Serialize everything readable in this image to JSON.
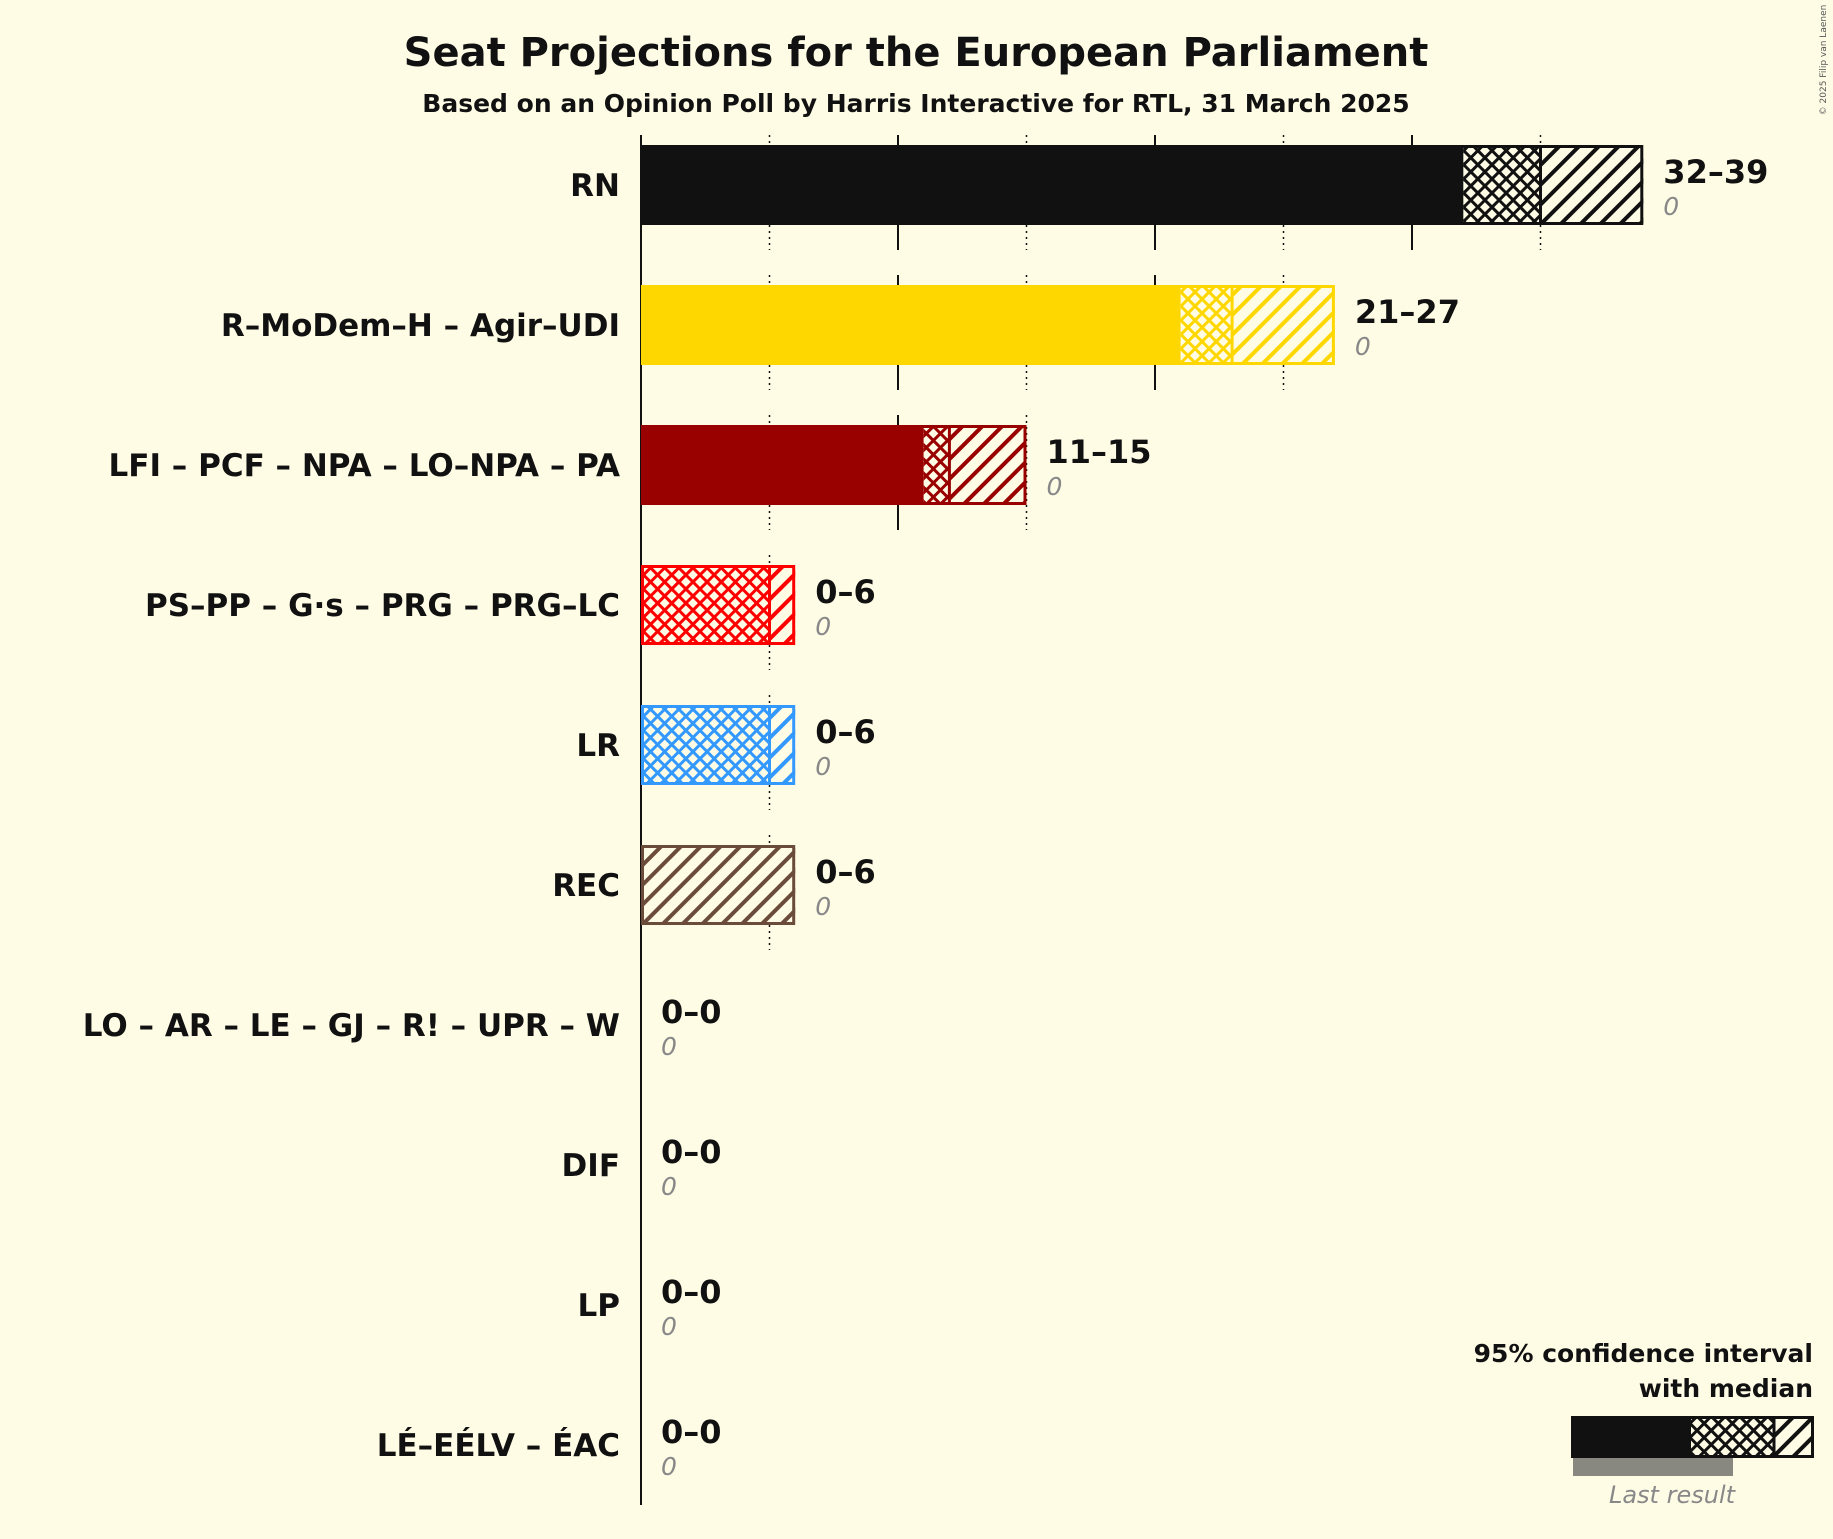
{
  "chart_data": {
    "type": "bar",
    "orientation": "horizontal",
    "title": "Seat Projections for the European Parliament",
    "subtitle": "Based on an Opinion Poll by Harris Interactive for RTL, 31 March 2025",
    "credit": "© 2025 Filip van Laenen",
    "xlim": [
      0,
      40
    ],
    "grid": true,
    "legend_position": "bottom-right",
    "parties": [
      {
        "name": "RN",
        "color": "#111111",
        "low": 32,
        "median": 35,
        "high": 39,
        "range_label": "32–39",
        "last_result": "0"
      },
      {
        "name": "R–MoDem–H – Agir–UDI",
        "color": "#FFD700",
        "low": 21,
        "median": 23,
        "high": 27,
        "range_label": "21–27",
        "last_result": "0"
      },
      {
        "name": "LFI – PCF – NPA – LO–NPA – PA",
        "color": "#990000",
        "low": 11,
        "median": 12,
        "high": 15,
        "range_label": "11–15",
        "last_result": "0"
      },
      {
        "name": "PS–PP – G·s – PRG – PRG–LC",
        "color": "#FF0000",
        "low": 0,
        "median": 5,
        "high": 6,
        "range_label": "0–6",
        "last_result": "0"
      },
      {
        "name": "LR",
        "color": "#3399FF",
        "low": 0,
        "median": 5,
        "high": 6,
        "range_label": "0–6",
        "last_result": "0"
      },
      {
        "name": "REC",
        "color": "#6B4C3B",
        "low": 0,
        "median": 0,
        "high": 6,
        "range_label": "0–6",
        "last_result": "0"
      },
      {
        "name": "LO – AR – LE – GJ – R! – UPR – W",
        "color": "#888888",
        "low": 0,
        "median": 0,
        "high": 0,
        "range_label": "0–0",
        "last_result": "0"
      },
      {
        "name": "DIF",
        "color": "#888888",
        "low": 0,
        "median": 0,
        "high": 0,
        "range_label": "0–0",
        "last_result": "0"
      },
      {
        "name": "LP",
        "color": "#888888",
        "low": 0,
        "median": 0,
        "high": 0,
        "range_label": "0–0",
        "last_result": "0"
      },
      {
        "name": "LÉ–EÉLV – ÉAC",
        "color": "#888888",
        "low": 0,
        "median": 0,
        "high": 0,
        "range_label": "0–0",
        "last_result": "0"
      }
    ],
    "legend": {
      "line1": "95% confidence interval",
      "line2": "with median",
      "last_result_label": "Last result"
    }
  }
}
